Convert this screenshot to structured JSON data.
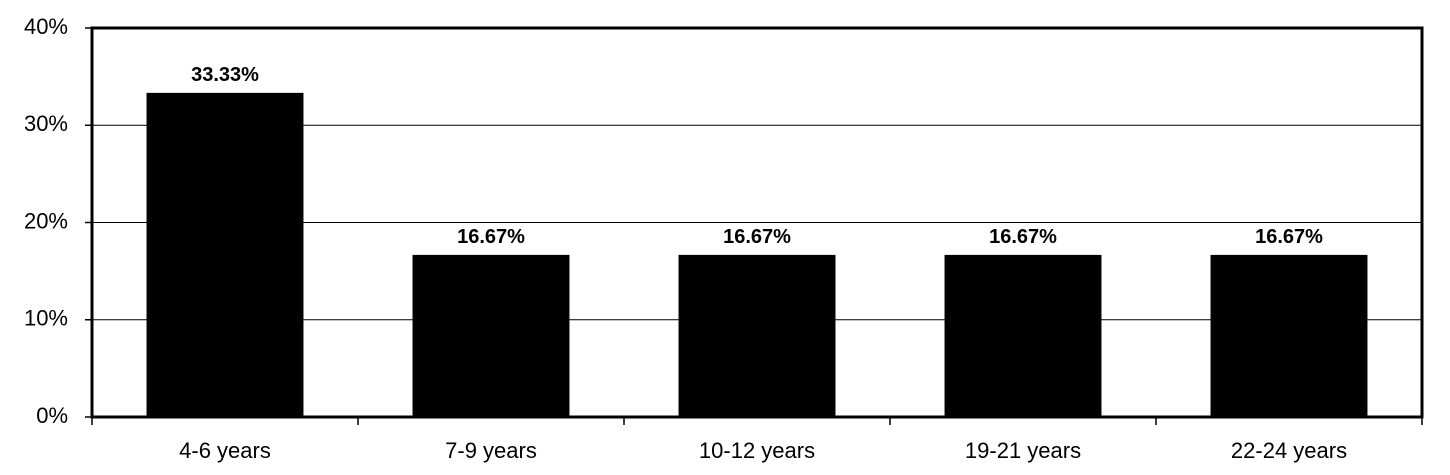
{
  "chart_data": {
    "type": "bar",
    "categories": [
      "4-6 years",
      "7-9 years",
      "10-12 years",
      "19-21 years",
      "22-24 years"
    ],
    "values": [
      33.33,
      16.67,
      16.67,
      16.67,
      16.67
    ],
    "value_labels": [
      "33.33%",
      "16.67%",
      "16.67%",
      "16.67%",
      "16.67%"
    ],
    "color": "#000000",
    "ylim": [
      0,
      40
    ],
    "yticks": [
      {
        "value": 0,
        "label": "0%"
      },
      {
        "value": 10,
        "label": "10%"
      },
      {
        "value": 20,
        "label": "20%"
      },
      {
        "value": 30,
        "label": "30%"
      },
      {
        "value": 40,
        "label": "40%"
      }
    ],
    "grid": true
  }
}
